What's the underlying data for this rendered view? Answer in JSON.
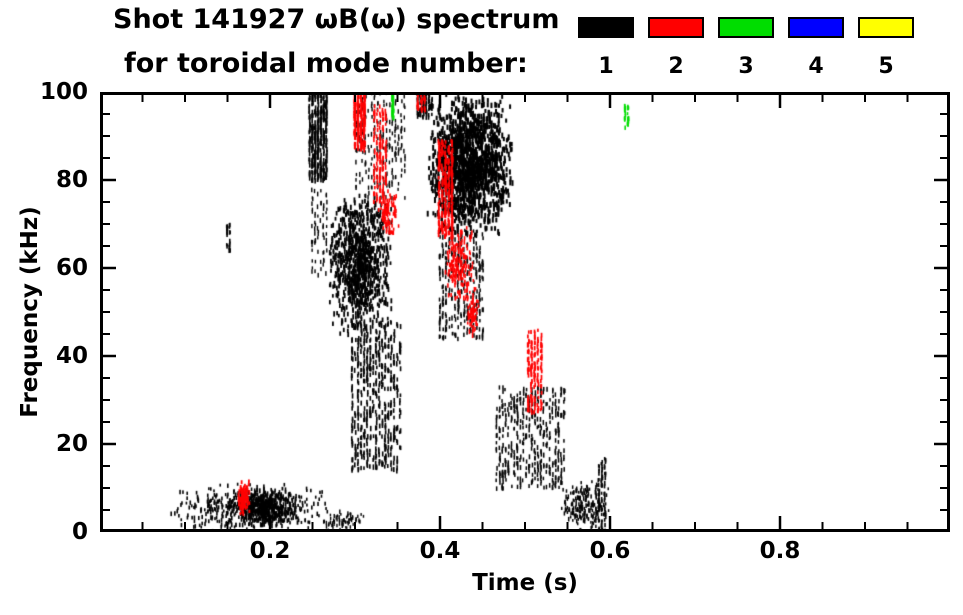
{
  "chart_data": {
    "type": "scatter",
    "title": "Shot 141927 ωB(ω) spectrum",
    "subtitle": "for toroidal mode number:",
    "xlabel": "Time (s)",
    "ylabel": "Frequency (kHz)",
    "xlim": [
      0.0,
      1.0
    ],
    "ylim": [
      0,
      100
    ],
    "grid": false,
    "x_major_ticks": [
      0.0,
      0.2,
      0.4,
      0.6,
      0.8,
      1.0
    ],
    "x_tick_labels": [
      "",
      "0.2",
      "0.4",
      "0.6",
      "0.8",
      ""
    ],
    "x_minor_step": 0.05,
    "y_major_ticks": [
      0,
      20,
      40,
      60,
      80,
      100
    ],
    "y_tick_labels": [
      "0",
      "20",
      "40",
      "60",
      "80",
      "100"
    ],
    "y_minor_step": 5,
    "legend": {
      "position": "top-right",
      "entries": [
        {
          "label": "1",
          "color": "#000000"
        },
        {
          "label": "2",
          "color": "#ff0000"
        },
        {
          "label": "3",
          "color": "#00dd00"
        },
        {
          "label": "4",
          "color": "#0000ff"
        },
        {
          "label": "5",
          "color": "#ffff00"
        }
      ]
    },
    "clusters": [
      {
        "mode": 1,
        "t": [
          0.245,
          0.268
        ],
        "f": [
          80,
          100
        ],
        "n": 380,
        "style": "streaks",
        "s": [
          1.6,
          3.5
        ]
      },
      {
        "mode": 1,
        "t": [
          0.248,
          0.268
        ],
        "f": [
          58,
          81
        ],
        "n": 70,
        "style": "streaks",
        "s": [
          1.4,
          3
        ]
      },
      {
        "mode": 1,
        "t": [
          0.268,
          0.345
        ],
        "f": [
          44,
          78
        ],
        "n": 950,
        "style": "blob",
        "s": [
          1.8,
          3.5
        ]
      },
      {
        "mode": 1,
        "t": [
          0.295,
          0.355
        ],
        "f": [
          14,
          48
        ],
        "n": 520,
        "style": "streaks",
        "s": [
          1.6,
          3.5
        ]
      },
      {
        "mode": 1,
        "t": [
          0.3,
          0.36
        ],
        "f": [
          76,
          100
        ],
        "n": 220,
        "style": "streaks",
        "s": [
          1.4,
          3
        ]
      },
      {
        "mode": 1,
        "t": [
          0.385,
          0.487
        ],
        "f": [
          67,
          100
        ],
        "n": 1500,
        "style": "blob",
        "s": [
          2,
          4
        ]
      },
      {
        "mode": 1,
        "t": [
          0.398,
          0.452
        ],
        "f": [
          44,
          69
        ],
        "n": 320,
        "style": "streaks",
        "s": [
          1.5,
          3.2
        ]
      },
      {
        "mode": 1,
        "t": [
          0.465,
          0.548
        ],
        "f": [
          10,
          33
        ],
        "n": 430,
        "style": "streaks",
        "s": [
          1.5,
          3.2
        ]
      },
      {
        "mode": 1,
        "t": [
          0.08,
          0.275
        ],
        "f": [
          0,
          11
        ],
        "n": 480,
        "style": "blob",
        "s": [
          1.6,
          2.8
        ]
      },
      {
        "mode": 1,
        "t": [
          0.155,
          0.235
        ],
        "f": [
          1,
          10
        ],
        "n": 330,
        "style": "blob",
        "s": [
          1.8,
          3
        ]
      },
      {
        "mode": 1,
        "t": [
          0.148,
          0.154
        ],
        "f": [
          63,
          70
        ],
        "n": 26,
        "style": "streaks",
        "s": [
          1.6,
          3
        ]
      },
      {
        "mode": 1,
        "t": [
          0.54,
          0.6
        ],
        "f": [
          0,
          12
        ],
        "n": 190,
        "style": "blob",
        "s": [
          1.5,
          2.8
        ]
      },
      {
        "mode": 1,
        "t": [
          0.585,
          0.596
        ],
        "f": [
          0,
          17
        ],
        "n": 90,
        "style": "streaks",
        "s": [
          1.6,
          3
        ]
      },
      {
        "mode": 1,
        "t": [
          0.372,
          0.392
        ],
        "f": [
          94,
          100
        ],
        "n": 90,
        "style": "streaks",
        "s": [
          1.6,
          3
        ]
      },
      {
        "mode": 1,
        "t": [
          0.26,
          0.315
        ],
        "f": [
          0,
          5
        ],
        "n": 70,
        "style": "blob",
        "s": [
          1.4,
          2.5
        ]
      },
      {
        "mode": 2,
        "t": [
          0.298,
          0.313
        ],
        "f": [
          87,
          100
        ],
        "n": 210,
        "style": "streaks",
        "s": [
          1.8,
          3.5
        ]
      },
      {
        "mode": 2,
        "t": [
          0.321,
          0.338
        ],
        "f": [
          75,
          97
        ],
        "n": 150,
        "style": "streaks",
        "s": [
          1.6,
          3.2
        ]
      },
      {
        "mode": 2,
        "t": [
          0.326,
          0.352
        ],
        "f": [
          67,
          78
        ],
        "n": 90,
        "style": "blob",
        "s": [
          1.6,
          3
        ]
      },
      {
        "mode": 2,
        "t": [
          0.397,
          0.416
        ],
        "f": [
          67,
          89
        ],
        "n": 260,
        "style": "streaks",
        "s": [
          1.8,
          3.5
        ]
      },
      {
        "mode": 2,
        "t": [
          0.406,
          0.44
        ],
        "f": [
          51,
          70
        ],
        "n": 180,
        "style": "blob",
        "s": [
          1.6,
          3
        ]
      },
      {
        "mode": 2,
        "t": [
          0.43,
          0.446
        ],
        "f": [
          44,
          56
        ],
        "n": 70,
        "style": "blob",
        "s": [
          1.6,
          3
        ]
      },
      {
        "mode": 2,
        "t": [
          0.502,
          0.521
        ],
        "f": [
          27,
          46
        ],
        "n": 150,
        "style": "streaks",
        "s": [
          1.7,
          3.2
        ]
      },
      {
        "mode": 2,
        "t": [
          0.162,
          0.178
        ],
        "f": [
          4,
          12
        ],
        "n": 100,
        "style": "blob",
        "s": [
          1.8,
          3
        ]
      },
      {
        "mode": 2,
        "t": [
          0.372,
          0.384
        ],
        "f": [
          96,
          100
        ],
        "n": 40,
        "style": "streaks",
        "s": [
          1.5,
          3
        ]
      },
      {
        "mode": 3,
        "t": [
          0.342,
          0.347
        ],
        "f": [
          94,
          100
        ],
        "n": 45,
        "style": "streaks",
        "s": [
          1.6,
          3.2
        ]
      },
      {
        "mode": 3,
        "t": [
          0.616,
          0.623
        ],
        "f": [
          92,
          97
        ],
        "n": 28,
        "style": "streaks",
        "s": [
          1.6,
          3
        ]
      }
    ]
  }
}
